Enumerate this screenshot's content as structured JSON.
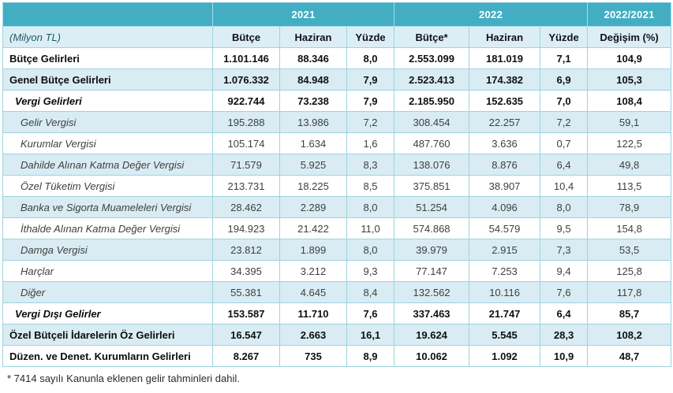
{
  "colors": {
    "header_teal": "#43aec3",
    "subhead_bg": "#dceef5",
    "alt_row_bg": "#d9ecf3",
    "grid_line": "#9ed2e0",
    "unit_text": "#1e5a68"
  },
  "table": {
    "unit_label": "(Milyon TL)",
    "col_groups": [
      {
        "label": "2021",
        "span": 3
      },
      {
        "label": "2022",
        "span": 3
      },
      {
        "label": "2022/2021",
        "span": 1
      }
    ],
    "columns": [
      "Bütçe",
      "Haziran",
      "Yüzde",
      "Bütçe*",
      "Haziran",
      "Yüzde",
      "Değişim (%)"
    ],
    "rows": [
      {
        "label": "Bütçe Gelirleri",
        "style": "bold",
        "indent": 0,
        "values": [
          "1.101.146",
          "88.346",
          "8,0",
          "2.553.099",
          "181.019",
          "7,1",
          "104,9"
        ]
      },
      {
        "label": "Genel Bütçe Gelirleri",
        "style": "bold",
        "indent": 0,
        "values": [
          "1.076.332",
          "84.948",
          "7,9",
          "2.523.413",
          "174.382",
          "6,9",
          "105,3"
        ]
      },
      {
        "label": "Vergi Gelirleri",
        "style": "bold-italic",
        "indent": 1,
        "values": [
          "922.744",
          "73.238",
          "7,9",
          "2.185.950",
          "152.635",
          "7,0",
          "108,4"
        ]
      },
      {
        "label": "Gelir Vergisi",
        "style": "italic",
        "indent": 2,
        "values": [
          "195.288",
          "13.986",
          "7,2",
          "308.454",
          "22.257",
          "7,2",
          "59,1"
        ]
      },
      {
        "label": "Kurumlar Vergisi",
        "style": "italic",
        "indent": 2,
        "values": [
          "105.174",
          "1.634",
          "1,6",
          "487.760",
          "3.636",
          "0,7",
          "122,5"
        ]
      },
      {
        "label": "Dahilde Alınan Katma Değer Vergisi",
        "style": "italic",
        "indent": 2,
        "values": [
          "71.579",
          "5.925",
          "8,3",
          "138.076",
          "8.876",
          "6,4",
          "49,8"
        ]
      },
      {
        "label": "Özel Tüketim Vergisi",
        "style": "italic",
        "indent": 2,
        "values": [
          "213.731",
          "18.225",
          "8,5",
          "375.851",
          "38.907",
          "10,4",
          "113,5"
        ]
      },
      {
        "label": "Banka ve Sigorta Muameleleri Vergisi",
        "style": "italic",
        "indent": 2,
        "values": [
          "28.462",
          "2.289",
          "8,0",
          "51.254",
          "4.096",
          "8,0",
          "78,9"
        ]
      },
      {
        "label": "İthalde Alınan Katma Değer Vergisi",
        "style": "italic",
        "indent": 2,
        "values": [
          "194.923",
          "21.422",
          "11,0",
          "574.868",
          "54.579",
          "9,5",
          "154,8"
        ]
      },
      {
        "label": "Damga Vergisi",
        "style": "italic",
        "indent": 2,
        "values": [
          "23.812",
          "1.899",
          "8,0",
          "39.979",
          "2.915",
          "7,3",
          "53,5"
        ]
      },
      {
        "label": "Harçlar",
        "style": "italic",
        "indent": 2,
        "values": [
          "34.395",
          "3.212",
          "9,3",
          "77.147",
          "7.253",
          "9,4",
          "125,8"
        ]
      },
      {
        "label": "Diğer",
        "style": "italic",
        "indent": 2,
        "values": [
          "55.381",
          "4.645",
          "8,4",
          "132.562",
          "10.116",
          "7,6",
          "117,8"
        ]
      },
      {
        "label": "Vergi Dışı Gelirler",
        "style": "bold-italic",
        "indent": 1,
        "values": [
          "153.587",
          "11.710",
          "7,6",
          "337.463",
          "21.747",
          "6,4",
          "85,7"
        ]
      },
      {
        "label": "Özel Bütçeli İdarelerin Öz Gelirleri",
        "style": "bold",
        "indent": 0,
        "values": [
          "16.547",
          "2.663",
          "16,1",
          "19.624",
          "5.545",
          "28,3",
          "108,2"
        ]
      },
      {
        "label": "Düzen. ve Denet. Kurumların Gelirleri",
        "style": "bold",
        "indent": 0,
        "values": [
          "8.267",
          "735",
          "8,9",
          "10.062",
          "1.092",
          "10,9",
          "48,7"
        ]
      }
    ],
    "footnote": "* 7414 sayılı Kanunla eklenen gelir tahminleri dahil."
  }
}
